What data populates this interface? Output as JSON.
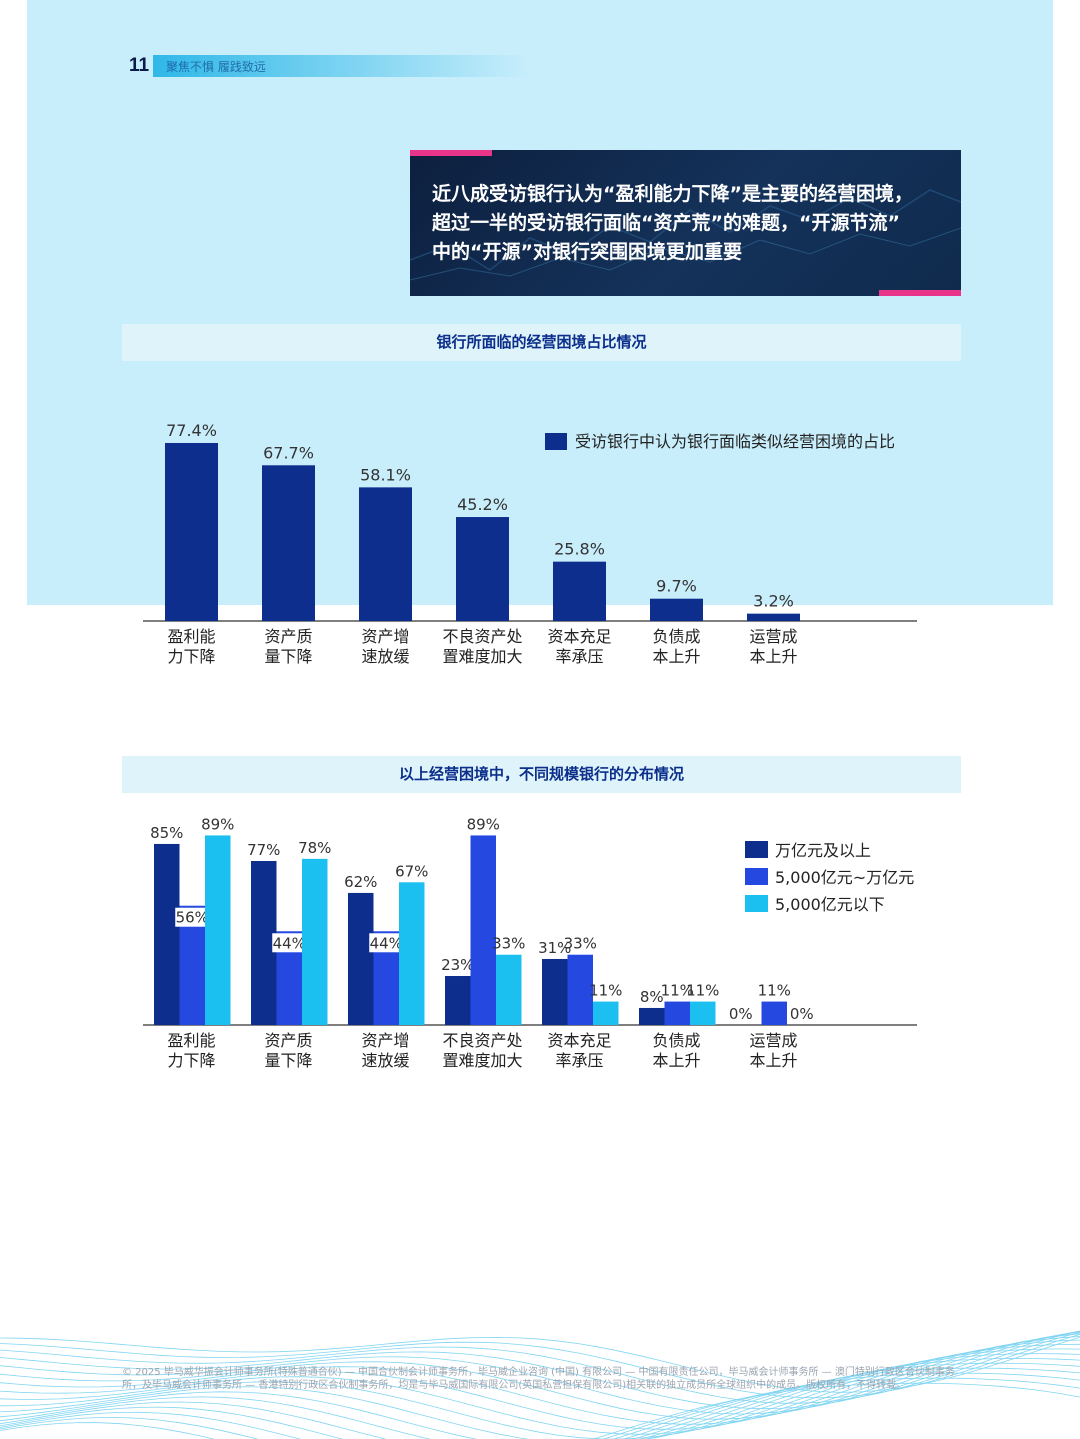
{
  "page": {
    "page_number": "11",
    "header_text": "聚焦不惧 履践致远"
  },
  "headline": {
    "lines": [
      "近八成受访银行认为“盈利能力下降”是主要的经营困境，",
      "超过一半的受访银行面临“资产荒”的难题，“开源节流”",
      "中的“开源”对银行突围困境更加重要"
    ]
  },
  "colors": {
    "panel_bg": "#c9eefb",
    "title_band": "#dff3fb",
    "navy": "#0d2e8c",
    "blue": "#2448e0",
    "cyan": "#1cc0f0",
    "pink": "#e8358a"
  },
  "chart_data": [
    {
      "type": "bar",
      "title": "银行所面临的经营困境占比情况",
      "categories": [
        [
          "盈利能",
          "力下降"
        ],
        [
          "资产质",
          "量下降"
        ],
        [
          "资产增",
          "速放缓"
        ],
        [
          "不良资产处",
          "置难度加大"
        ],
        [
          "资本充足",
          "率承压"
        ],
        [
          "负债成",
          "本上升"
        ],
        [
          "运营成",
          "本上升"
        ]
      ],
      "series": [
        {
          "name": "受访银行中认为银行面临类似经营困境的占比",
          "values": [
            77.4,
            67.7,
            58.1,
            45.2,
            25.8,
            9.7,
            3.2
          ],
          "labels": [
            "77.4%",
            "67.7%",
            "58.1%",
            "45.2%",
            "25.8%",
            "9.7%",
            "3.2%"
          ]
        }
      ],
      "ylim": [
        0,
        100
      ],
      "grid": false,
      "legend": "top-right"
    },
    {
      "type": "bar",
      "title": "以上经营困境中，不同规模银行的分布情况",
      "categories": [
        [
          "盈利能",
          "力下降"
        ],
        [
          "资产质",
          "量下降"
        ],
        [
          "资产增",
          "速放缓"
        ],
        [
          "不良资产处",
          "置难度加大"
        ],
        [
          "资本充足",
          "率承压"
        ],
        [
          "负债成",
          "本上升"
        ],
        [
          "运营成",
          "本上升"
        ]
      ],
      "series": [
        {
          "name": "万亿元及以上",
          "values": [
            85,
            77,
            62,
            23,
            31,
            8,
            0
          ],
          "labels": [
            "85%",
            "77%",
            "62%",
            "23%",
            "31%",
            "8%",
            "0%"
          ]
        },
        {
          "name": "5,000亿元~万亿元",
          "values": [
            56,
            44,
            44,
            89,
            33,
            11,
            11
          ],
          "labels": [
            "56%",
            "44%",
            "44%",
            "89%",
            "33%",
            "11%",
            "11%"
          ]
        },
        {
          "name": "5,000亿元以下",
          "values": [
            89,
            78,
            67,
            33,
            11,
            11,
            0
          ],
          "labels": [
            "89%",
            "78%",
            "67%",
            "33%",
            "11%",
            "11%",
            "0%"
          ]
        }
      ],
      "ylim": [
        0,
        100
      ],
      "grid": false,
      "legend": "top-right"
    }
  ],
  "footer": {
    "text": "© 2025 毕马威华振会计师事务所(特殊普通合伙) — 中国合伙制会计师事务所，毕马威企业咨询 (中国) 有限公司 — 中国有限责任公司，毕马威会计师事务所 — 澳门特别行政区合伙制事务所，及毕马威会计师事务所 — 香港特别行政区合伙制事务所，均是与毕马威国际有限公司(英国私营担保有限公司)相关联的独立成员所全球组织中的成员。版权所有，不得转载。"
  }
}
